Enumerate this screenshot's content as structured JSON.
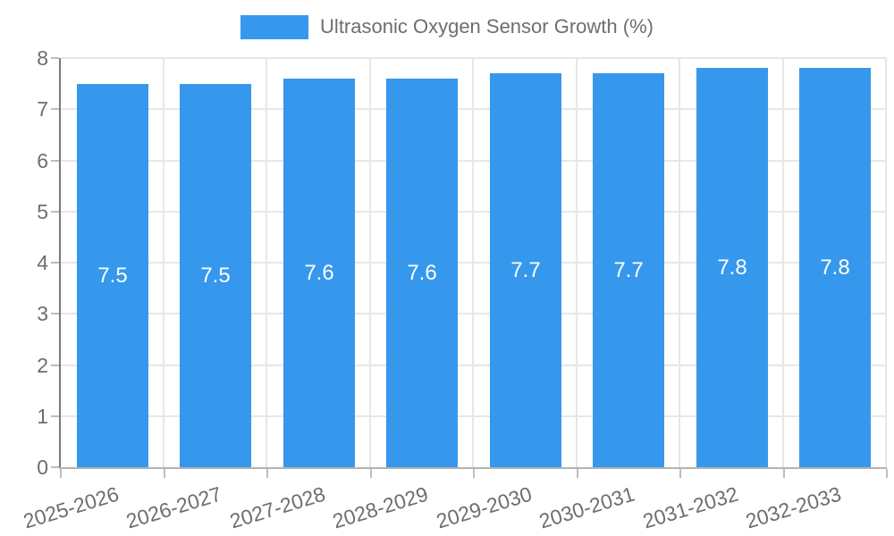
{
  "legend": {
    "label": "Ultrasonic Oxygen Sensor Growth (%)"
  },
  "colors": {
    "bar": "#3598EC",
    "bar_label": "#FFFFFF",
    "axis_text": "#6E6E6E",
    "legend_text": "#6E6E6E",
    "grid_line": "#E7E7E7",
    "y_axis_line": "#7A7A7A",
    "baseline": "#B3B3B3",
    "tick_mark": "#BDBDBD"
  },
  "chart_data": {
    "type": "bar",
    "title": "Ultrasonic Oxygen Sensor Growth (%)",
    "categories": [
      "2025-2026",
      "2026-2027",
      "2027-2028",
      "2028-2029",
      "2029-2030",
      "2030-2031",
      "2031-2032",
      "2032-2033"
    ],
    "values": [
      7.5,
      7.5,
      7.6,
      7.6,
      7.7,
      7.7,
      7.8,
      7.8
    ],
    "bar_labels": [
      "7.5",
      "7.5",
      "7.6",
      "7.6",
      "7.7",
      "7.7",
      "7.8",
      "7.8"
    ],
    "xlabel": "",
    "ylabel": "",
    "ylim": [
      0,
      8
    ],
    "yticks": [
      0,
      1,
      2,
      3,
      4,
      5,
      6,
      7,
      8
    ],
    "grid": true,
    "legend_position": "top",
    "x_tick_rotation_deg": -17
  }
}
